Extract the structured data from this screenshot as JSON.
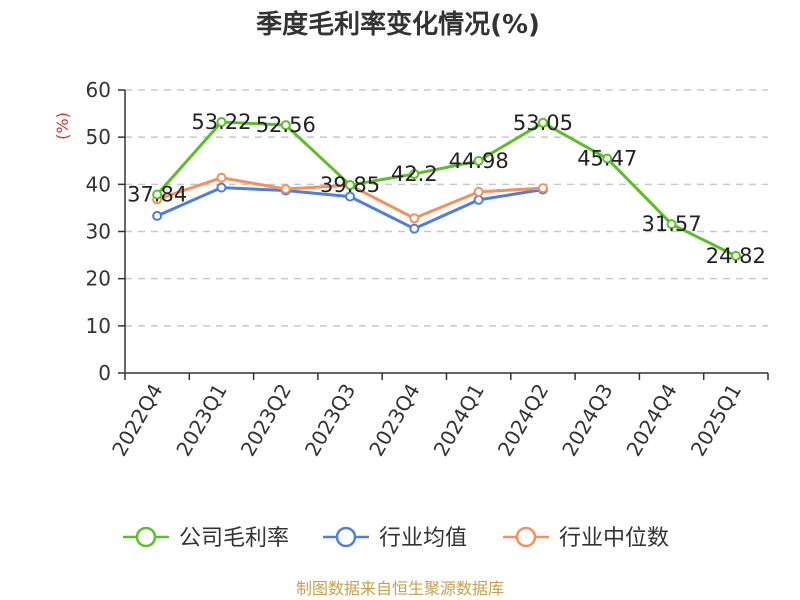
{
  "chart_data": {
    "type": "line",
    "title": "季度毛利率变化情况(%)",
    "ylabel": "(%)",
    "ylim": [
      0,
      60
    ],
    "yticks": [
      0,
      10,
      20,
      30,
      40,
      50,
      60
    ],
    "grid": "horizontal-dashed",
    "legend_position": "bottom",
    "categories": [
      "2022Q4",
      "2023Q1",
      "2023Q2",
      "2023Q3",
      "2023Q4",
      "2024Q1",
      "2024Q2",
      "2024Q3",
      "2024Q4",
      "2025Q1"
    ],
    "series": [
      {
        "name": "公司毛利率",
        "color": "#5cbf2a",
        "values": [
          37.84,
          53.22,
          52.56,
          39.85,
          42.2,
          44.98,
          53.05,
          45.47,
          31.57,
          24.82
        ],
        "labels": [
          "37.84",
          "53.22",
          "52.56",
          "39.85",
          "42.2",
          "44.98",
          "53.05",
          "45.47",
          "31.57",
          "24.82"
        ]
      },
      {
        "name": "行业均值",
        "color": "#4f7fdb",
        "values": [
          33.3,
          39.3,
          38.7,
          37.4,
          30.6,
          36.7,
          38.9,
          null,
          null,
          null
        ]
      },
      {
        "name": "行业中位数",
        "color": "#f3905e",
        "values": [
          36.8,
          41.4,
          39.0,
          39.8,
          32.8,
          38.4,
          39.2,
          null,
          null,
          null
        ]
      }
    ]
  },
  "footer": {
    "source": "制图数据来自恒生聚源数据库",
    "source_color": "#c8a04a"
  },
  "colors": {
    "ylabel": "#d9302c",
    "axis": "#333333",
    "grid": "#c8c8c8"
  }
}
